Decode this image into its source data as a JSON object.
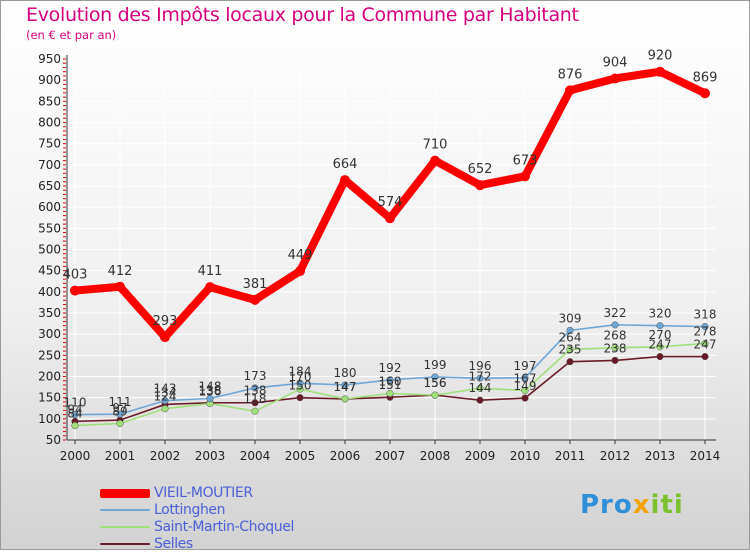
{
  "title": "Evolution des Impôts locaux pour la Commune par Habitant",
  "subtitle": "(en € et par an)",
  "logo": {
    "p1": "Pro",
    "p2": "x",
    "p3": "iti"
  },
  "colors": {
    "title": "#d6007e",
    "vieil": "#ff0000",
    "lottinghen": "#6ea6d6",
    "saint_martin": "#9fe07a",
    "selles": "#6a1a26",
    "legend_text": "#4a60d8",
    "grid": "#ffffff",
    "axis_text": "#222222",
    "label_text": "#333333"
  },
  "chart_data": {
    "type": "line",
    "title": "Evolution des Impôts locaux pour la Commune par Habitant",
    "subtitle": "(en € et par an)",
    "x": [
      "2000",
      "2001",
      "2002",
      "2003",
      "2004",
      "2005",
      "2006",
      "2007",
      "2008",
      "2009",
      "2010",
      "2011",
      "2012",
      "2013",
      "2014"
    ],
    "y_ticks": [
      50,
      100,
      150,
      200,
      250,
      300,
      350,
      400,
      450,
      500,
      550,
      600,
      650,
      700,
      750,
      800,
      850,
      900,
      950
    ],
    "ylim": [
      50,
      950
    ],
    "legend_position": "bottom-left",
    "series": [
      {
        "name": "VIEIL-MOUTIER",
        "key": "vieil",
        "values": [
          403,
          412,
          293,
          411,
          381,
          449,
          664,
          574,
          710,
          652,
          673,
          876,
          904,
          920,
          869
        ],
        "labels": [
          "403",
          "412",
          "293",
          "411",
          "381",
          "449",
          "664",
          "574",
          "710",
          "652",
          "673",
          "876",
          "904",
          "920",
          "869"
        ]
      },
      {
        "name": "Lottinghen",
        "key": "lottinghen",
        "values": [
          110,
          111,
          143,
          148,
          173,
          184,
          180,
          192,
          199,
          196,
          197,
          309,
          322,
          320,
          318
        ],
        "labels": [
          "110",
          "111",
          "143",
          "148",
          "173",
          "184",
          "180",
          "192",
          "199",
          "196",
          "197",
          "309",
          "322",
          "320",
          "318"
        ]
      },
      {
        "name": "Saint-Martin-Choquel",
        "key": "saint_martin",
        "values": [
          84,
          89,
          124,
          136,
          118,
          170,
          147,
          160,
          156,
          172,
          167,
          264,
          268,
          270,
          278
        ],
        "labels": [
          "84",
          "89",
          "124",
          "136",
          "118",
          "170",
          "147",
          "160",
          "156",
          "172",
          "167",
          "264",
          "268",
          "270",
          "278"
        ]
      },
      {
        "name": "Selles",
        "key": "selles",
        "values": [
          94,
          97,
          134,
          138,
          138,
          150,
          147,
          151,
          156,
          144,
          149,
          235,
          238,
          247,
          247
        ],
        "labels": [
          "94",
          "97",
          "134",
          "138",
          "138",
          "150",
          "147",
          "151",
          "156",
          "144",
          "149",
          "235",
          "238",
          "247",
          "247"
        ]
      }
    ]
  }
}
